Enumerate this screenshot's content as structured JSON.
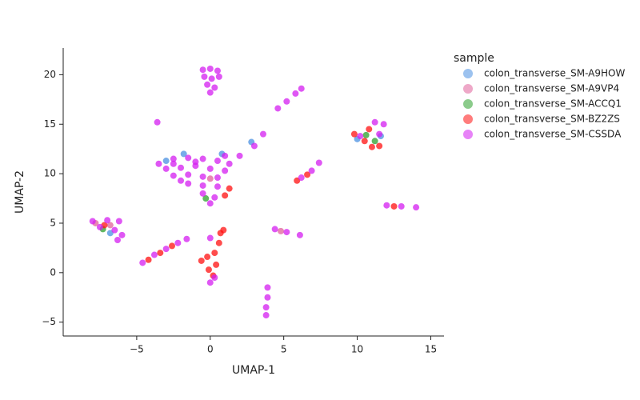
{
  "chart_data": {
    "type": "scatter",
    "xlabel": "UMAP-1",
    "ylabel": "UMAP-2",
    "legend_title": "sample",
    "legend_position": "outside right",
    "xlim": [
      -10,
      15.9
    ],
    "ylim": [
      -6.4,
      22.7
    ],
    "xticks": [
      {
        "value": -5,
        "label": "−5"
      },
      0,
      5,
      10,
      15
    ],
    "yticks": [
      {
        "value": -5,
        "label": "−5"
      },
      0,
      5,
      10,
      15,
      20
    ],
    "series": [
      {
        "name": "colon_transverse_SM-A9HOW",
        "color": "#4a90e2",
        "x": [
          -1.8,
          0.8,
          2.8,
          -3,
          10,
          11.6,
          -6.8
        ],
        "y": [
          12,
          12,
          13.2,
          11.3,
          13.5,
          13.8,
          4
        ]
      },
      {
        "name": "colon_transverse_SM-A9VP4",
        "color": "#e0609a",
        "x": [
          -7.8,
          -6.8,
          4.8,
          0
        ],
        "y": [
          5,
          4.8,
          4.2,
          9.5
        ]
      },
      {
        "name": "colon_transverse_SM-ACCQ1",
        "color": "#2ca02c",
        "x": [
          -7.3,
          10.6,
          11.2,
          -0.3
        ],
        "y": [
          4.4,
          13.9,
          13.3,
          7.5
        ]
      },
      {
        "name": "colon_transverse_SM-BZ2ZS",
        "color": "#ff1010",
        "x": [
          -4.2,
          -3.4,
          -2.6,
          -0.6,
          -0.2,
          0.3,
          0.6,
          -0.1,
          0.4,
          0.2,
          0.7,
          0.9,
          1,
          1.3,
          5.9,
          6.6,
          9.8,
          10.5,
          11,
          11.5,
          10.8,
          12.5,
          -7.2
        ],
        "y": [
          1.3,
          2,
          2.7,
          1.2,
          1.6,
          2,
          3,
          0.3,
          0.8,
          -0.3,
          4,
          4.3,
          7.8,
          8.5,
          9.3,
          9.9,
          14,
          13.3,
          12.7,
          12.8,
          14.5,
          6.7,
          4.8
        ]
      },
      {
        "name": "colon_transverse_SM-CSSDA",
        "color": "#d41ef0",
        "x": [
          -0.5,
          0,
          0.5,
          -0.4,
          0.1,
          0.6,
          -0.2,
          0.3,
          0,
          -3.5,
          -2.5,
          -1.5,
          -0.5,
          0.5,
          1.3,
          -3,
          -2,
          -1,
          0,
          1,
          -2.5,
          -1.5,
          -0.5,
          0.5,
          -1.5,
          -0.5,
          0.5,
          -0.5,
          0.3,
          0,
          2,
          3,
          3.6,
          -2.5,
          -1,
          1,
          -2,
          -8,
          -7,
          -6.2,
          -7.5,
          -6.5,
          -6,
          -6.3,
          -4.6,
          -3.8,
          -3,
          -2.2,
          -1.6,
          0,
          0.3,
          0,
          3.9,
          3.9,
          3.8,
          3.8,
          4.6,
          5.2,
          5.8,
          6.2,
          6.2,
          6.9,
          7.4,
          4.4,
          5.2,
          6.1,
          11.2,
          11.8,
          10.2,
          11.5,
          12,
          13,
          14,
          -3.6
        ],
        "y": [
          20.5,
          20.6,
          20.4,
          19.8,
          19.6,
          19.8,
          19,
          18.7,
          18.2,
          11,
          11.5,
          11.6,
          11.5,
          11.3,
          11,
          10.5,
          10.6,
          10.8,
          10.5,
          10.3,
          9.8,
          9.9,
          9.7,
          9.6,
          9,
          8.8,
          8.7,
          8,
          7.6,
          7,
          11.8,
          12.8,
          14,
          11,
          11.2,
          11.8,
          9.3,
          5.2,
          5.3,
          5.2,
          4.6,
          4.3,
          3.8,
          3.3,
          1,
          1.8,
          2.4,
          3,
          3.4,
          3.5,
          -0.5,
          -1,
          -1.5,
          -2.5,
          -3.5,
          -4.3,
          16.6,
          17.3,
          18.1,
          18.6,
          9.6,
          10.3,
          11.1,
          4.4,
          4.1,
          3.8,
          15.2,
          15,
          13.8,
          14,
          6.8,
          6.7,
          6.6,
          15.2
        ]
      }
    ]
  }
}
